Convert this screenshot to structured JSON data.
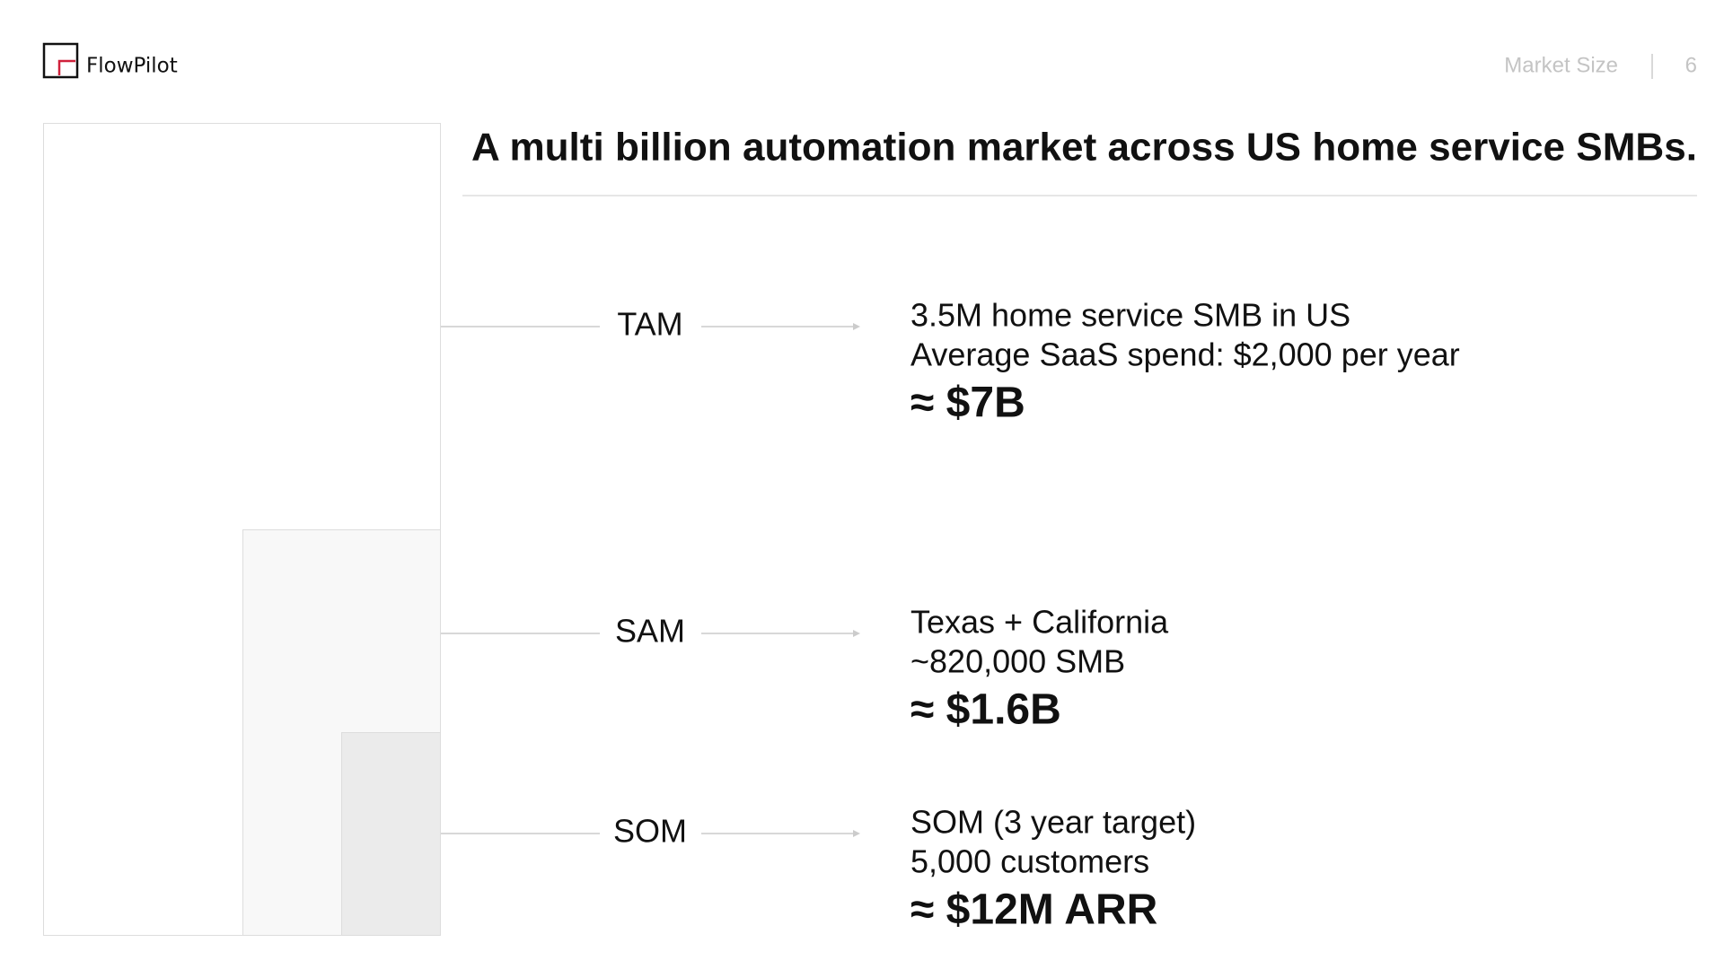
{
  "header": {
    "brand": "FlowPilot",
    "section": "Market Size",
    "page": "6"
  },
  "title": "A multi billion automation market across US home service SMBs.",
  "rows": [
    {
      "label": "TAM",
      "lines": [
        "3.5M home service SMB in US",
        "Average SaaS spend: $2,000 per year"
      ],
      "value": "≈ $7B"
    },
    {
      "label": "SAM",
      "lines": [
        "Texas + California",
        "~820,000 SMB"
      ],
      "value": "≈ $1.6B"
    },
    {
      "label": "SOM",
      "lines": [
        "SOM (3 year target)",
        "5,000 customers"
      ],
      "value": "≈ $12M ARR"
    }
  ]
}
